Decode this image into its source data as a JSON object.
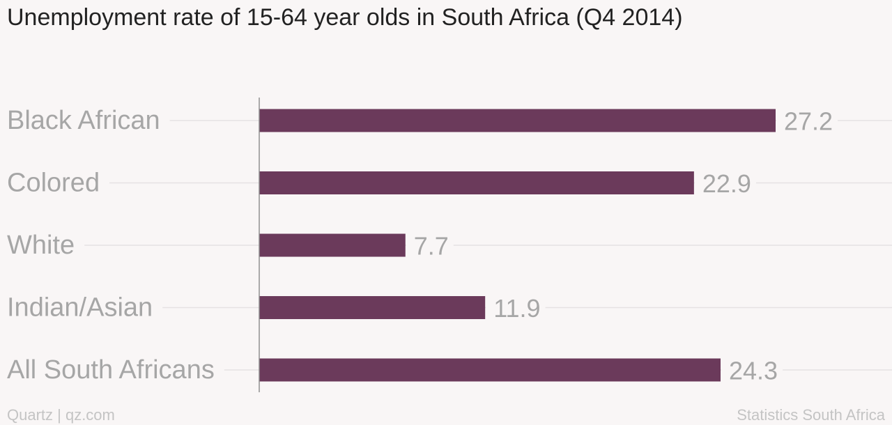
{
  "chart_data": {
    "type": "bar",
    "orientation": "horizontal",
    "title": "Unemployment rate of 15-64 year olds in South Africa (Q4 2014)",
    "categories": [
      "Black African",
      "Colored",
      "White",
      "Indian/Asian",
      "All South Africans"
    ],
    "values": [
      27.2,
      22.9,
      7.7,
      11.9,
      24.3
    ],
    "value_labels": [
      "27.2",
      "22.9",
      "7.7",
      "11.9",
      "24.3"
    ],
    "xlim": [
      0,
      27.2
    ],
    "grid": true,
    "bar_color": "#6b3a5b"
  },
  "footer": {
    "credit": "Quartz | qz.com",
    "source": "Statistics South Africa"
  }
}
